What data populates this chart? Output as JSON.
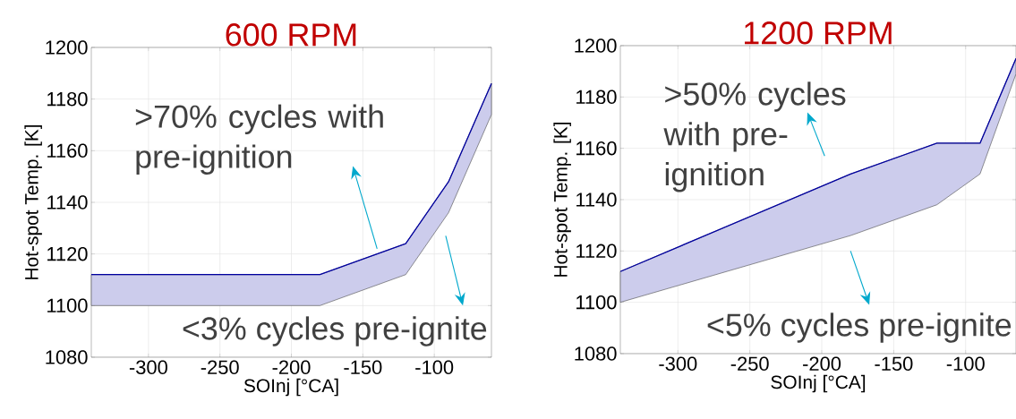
{
  "chart_data": [
    {
      "type": "line",
      "title": "600 RPM",
      "xlabel": "SOInj [°CA]",
      "ylabel": "Hot-spot Temp. [K]",
      "x": [
        -340,
        -180,
        -120,
        -90,
        -60
      ],
      "series": [
        {
          "color": "#0000a0",
          "values": [
            1112,
            1112,
            1124,
            1148,
            1186
          ],
          "lower": [
            1100,
            1100,
            1112,
            1136,
            1174
          ],
          "upper": [
            1112,
            1112,
            1124,
            1148,
            1186
          ]
        }
      ],
      "xlim": [
        -340,
        -60
      ],
      "ylim": [
        1080,
        1200
      ],
      "xticks": [
        -300,
        -250,
        -200,
        -150,
        -100
      ],
      "yticks": [
        1080,
        1100,
        1120,
        1140,
        1160,
        1180,
        1200
      ],
      "grid": true,
      "annotations": [
        ">70% cycles with pre-ignition",
        "<3% cycles pre-ignite"
      ]
    },
    {
      "type": "line",
      "title": "1200 RPM",
      "xlabel": "SOInj [°CA]",
      "ylabel": "Hot-spot Temp. [K]",
      "x": [
        -340,
        -180,
        -120,
        -90,
        -65
      ],
      "series": [
        {
          "color": "#0000a0",
          "values": [
            1112,
            1150,
            1162,
            1162,
            1195
          ],
          "lower": [
            1100,
            1126,
            1138,
            1150,
            1189
          ],
          "upper": [
            1112,
            1150,
            1162,
            1162,
            1195
          ]
        }
      ],
      "xlim": [
        -340,
        -65
      ],
      "ylim": [
        1080,
        1200
      ],
      "xticks": [
        -300,
        -250,
        -200,
        -150,
        -100
      ],
      "yticks": [
        1080,
        1100,
        1120,
        1140,
        1160,
        1180,
        1200
      ],
      "grid": true,
      "annotations": [
        ">50% cycles with pre-ignition",
        "<5% cycles pre-ignite"
      ]
    }
  ]
}
